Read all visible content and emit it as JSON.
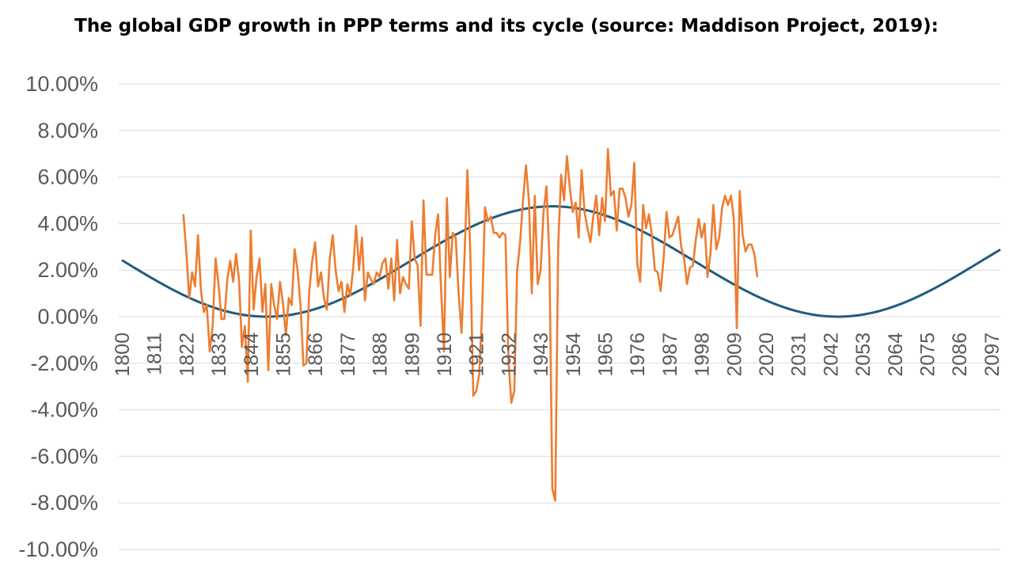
{
  "chart_data": {
    "type": "line",
    "title": "The global GDP growth in PPP terms and its cycle (source: Maddison Project, 2019):",
    "xlabel": "",
    "ylabel": "",
    "xlim": [
      1800,
      2100
    ],
    "ylim": [
      -0.1,
      0.1
    ],
    "y_tick_labels": [
      "10.00%",
      "8.00%",
      "6.00%",
      "4.00%",
      "2.00%",
      "0.00%",
      "-2.00%",
      "-4.00%",
      "-6.00%",
      "-8.00%",
      "-10.00%"
    ],
    "y_ticks": [
      0.1,
      0.08,
      0.06,
      0.04,
      0.02,
      0.0,
      -0.02,
      -0.04,
      -0.06,
      -0.08,
      -0.1
    ],
    "x_tick_labels": [
      "1800",
      "1811",
      "1822",
      "1833",
      "1844",
      "1855",
      "1866",
      "1877",
      "1888",
      "1899",
      "1910",
      "1921",
      "1932",
      "1943",
      "1954",
      "1965",
      "1976",
      "1987",
      "1998",
      "2009",
      "2020",
      "2031",
      "2042",
      "2053",
      "2064",
      "2075",
      "2086",
      "2097"
    ],
    "x_ticks": [
      1800,
      1811,
      1822,
      1833,
      1844,
      1855,
      1866,
      1877,
      1888,
      1899,
      1910,
      1921,
      1932,
      1943,
      1954,
      1965,
      1976,
      1987,
      1998,
      2009,
      2020,
      2031,
      2042,
      2053,
      2064,
      2075,
      2086,
      2097
    ],
    "grid": true,
    "legend": "none",
    "series": [
      {
        "color": "#ED7D31",
        "points": [
          [
            1821,
            0.044
          ],
          [
            1822,
            0.028
          ],
          [
            1823,
            0.008
          ],
          [
            1824,
            0.019
          ],
          [
            1825,
            0.013
          ],
          [
            1826,
            0.035
          ],
          [
            1827,
            0.011
          ],
          [
            1828,
            0.002
          ],
          [
            1829,
            0.005
          ],
          [
            1830,
            -0.015
          ],
          [
            1831,
            -0.004
          ],
          [
            1832,
            0.025
          ],
          [
            1833,
            0.014
          ],
          [
            1834,
            -0.001
          ],
          [
            1835,
            -0.001
          ],
          [
            1836,
            0.016
          ],
          [
            1837,
            0.024
          ],
          [
            1838,
            0.015
          ],
          [
            1839,
            0.027
          ],
          [
            1840,
            0.016
          ],
          [
            1841,
            -0.013
          ],
          [
            1842,
            -0.004
          ],
          [
            1843,
            -0.028
          ],
          [
            1844,
            0.037
          ],
          [
            1845,
            0.003
          ],
          [
            1846,
            0.017
          ],
          [
            1847,
            0.025
          ],
          [
            1848,
            0.002
          ],
          [
            1849,
            0.014
          ],
          [
            1850,
            -0.023
          ],
          [
            1851,
            0.014
          ],
          [
            1852,
            0.005
          ],
          [
            1853,
            -0.001
          ],
          [
            1854,
            0.015
          ],
          [
            1855,
            0.006
          ],
          [
            1856,
            -0.008
          ],
          [
            1857,
            0.008
          ],
          [
            1858,
            0.005
          ],
          [
            1859,
            0.029
          ],
          [
            1860,
            0.02
          ],
          [
            1861,
            0.005
          ],
          [
            1862,
            -0.021
          ],
          [
            1863,
            -0.02
          ],
          [
            1864,
            0.011
          ],
          [
            1865,
            0.024
          ],
          [
            1866,
            0.032
          ],
          [
            1867,
            0.013
          ],
          [
            1868,
            0.019
          ],
          [
            1869,
            0.008
          ],
          [
            1870,
            0.003
          ],
          [
            1871,
            0.025
          ],
          [
            1872,
            0.035
          ],
          [
            1873,
            0.02
          ],
          [
            1874,
            0.011
          ],
          [
            1875,
            0.015
          ],
          [
            1876,
            0.002
          ],
          [
            1877,
            0.014
          ],
          [
            1878,
            0.009
          ],
          [
            1879,
            0.021
          ],
          [
            1880,
            0.039
          ],
          [
            1881,
            0.02
          ],
          [
            1882,
            0.034
          ],
          [
            1883,
            0.007
          ],
          [
            1884,
            0.019
          ],
          [
            1885,
            0.016
          ],
          [
            1886,
            0.014
          ],
          [
            1887,
            0.019
          ],
          [
            1888,
            0.017
          ],
          [
            1889,
            0.023
          ],
          [
            1890,
            0.025
          ],
          [
            1891,
            0.012
          ],
          [
            1892,
            0.025
          ],
          [
            1893,
            0.007
          ],
          [
            1894,
            0.033
          ],
          [
            1895,
            0.01
          ],
          [
            1896,
            0.017
          ],
          [
            1897,
            0.014
          ],
          [
            1898,
            0.012
          ],
          [
            1899,
            0.041
          ],
          [
            1900,
            0.025
          ],
          [
            1901,
            0.022
          ],
          [
            1902,
            -0.004
          ],
          [
            1903,
            0.05
          ],
          [
            1904,
            0.018
          ],
          [
            1905,
            0.018
          ],
          [
            1906,
            0.018
          ],
          [
            1907,
            0.035
          ],
          [
            1908,
            0.044
          ],
          [
            1909,
            0.012
          ],
          [
            1910,
            -0.015
          ],
          [
            1911,
            0.051
          ],
          [
            1912,
            0.017
          ],
          [
            1913,
            0.036
          ],
          [
            1914,
            0.034
          ],
          [
            1915,
            0.01
          ],
          [
            1916,
            -0.007
          ],
          [
            1917,
            0.025
          ],
          [
            1918,
            0.063
          ],
          [
            1919,
            0.027
          ],
          [
            1920,
            -0.034
          ],
          [
            1921,
            -0.032
          ],
          [
            1922,
            -0.025
          ],
          [
            1923,
            0.001
          ],
          [
            1924,
            0.047
          ],
          [
            1925,
            0.041
          ],
          [
            1926,
            0.043
          ],
          [
            1927,
            0.036
          ],
          [
            1928,
            0.036
          ],
          [
            1929,
            0.034
          ],
          [
            1930,
            0.036
          ],
          [
            1931,
            0.035
          ],
          [
            1932,
            -0.018
          ],
          [
            1933,
            -0.037
          ],
          [
            1934,
            -0.032
          ],
          [
            1935,
            0.02
          ],
          [
            1936,
            0.032
          ],
          [
            1937,
            0.05
          ],
          [
            1938,
            0.065
          ],
          [
            1939,
            0.05
          ],
          [
            1940,
            0.01
          ],
          [
            1941,
            0.052
          ],
          [
            1942,
            0.014
          ],
          [
            1943,
            0.02
          ],
          [
            1944,
            0.045
          ],
          [
            1945,
            0.056
          ],
          [
            1946,
            0.025
          ],
          [
            1947,
            -0.074
          ],
          [
            1948,
            -0.079
          ],
          [
            1949,
            0.03
          ],
          [
            1950,
            0.061
          ],
          [
            1951,
            0.05
          ],
          [
            1952,
            0.069
          ],
          [
            1953,
            0.055
          ],
          [
            1954,
            0.045
          ],
          [
            1955,
            0.049
          ],
          [
            1956,
            0.034
          ],
          [
            1957,
            0.063
          ],
          [
            1958,
            0.045
          ],
          [
            1959,
            0.038
          ],
          [
            1960,
            0.032
          ],
          [
            1961,
            0.043
          ],
          [
            1962,
            0.052
          ],
          [
            1963,
            0.035
          ],
          [
            1964,
            0.051
          ],
          [
            1965,
            0.041
          ],
          [
            1966,
            0.072
          ],
          [
            1967,
            0.052
          ],
          [
            1968,
            0.054
          ],
          [
            1969,
            0.037
          ],
          [
            1970,
            0.055
          ],
          [
            1971,
            0.055
          ],
          [
            1972,
            0.051
          ],
          [
            1973,
            0.043
          ],
          [
            1974,
            0.048
          ],
          [
            1975,
            0.066
          ],
          [
            1976,
            0.023
          ],
          [
            1977,
            0.015
          ],
          [
            1978,
            0.048
          ],
          [
            1979,
            0.038
          ],
          [
            1980,
            0.044
          ],
          [
            1981,
            0.035
          ],
          [
            1982,
            0.02
          ],
          [
            1983,
            0.019
          ],
          [
            1984,
            0.011
          ],
          [
            1985,
            0.025
          ],
          [
            1986,
            0.045
          ],
          [
            1987,
            0.034
          ],
          [
            1988,
            0.035
          ],
          [
            1989,
            0.039
          ],
          [
            1990,
            0.043
          ],
          [
            1991,
            0.03
          ],
          [
            1992,
            0.025
          ],
          [
            1993,
            0.014
          ],
          [
            1994,
            0.021
          ],
          [
            1995,
            0.022
          ],
          [
            1996,
            0.033
          ],
          [
            1997,
            0.042
          ],
          [
            1998,
            0.034
          ],
          [
            1999,
            0.04
          ],
          [
            2000,
            0.017
          ],
          [
            2001,
            0.027
          ],
          [
            2002,
            0.048
          ],
          [
            2003,
            0.029
          ],
          [
            2004,
            0.034
          ],
          [
            2005,
            0.047
          ],
          [
            2006,
            0.052
          ],
          [
            2007,
            0.048
          ],
          [
            2008,
            0.052
          ],
          [
            2009,
            0.042
          ],
          [
            2010,
            -0.005
          ],
          [
            2011,
            0.054
          ],
          [
            2012,
            0.035
          ],
          [
            2013,
            0.028
          ],
          [
            2014,
            0.031
          ],
          [
            2015,
            0.031
          ],
          [
            2016,
            0.027
          ],
          [
            2017,
            0.017
          ]
        ]
      },
      {
        "color": "#1F5C7D",
        "cycle": {
          "mean": 0.0237,
          "amplitude": 0.0237,
          "period": 195,
          "peak_year": 1947
        },
        "x_range": [
          1800,
          2100
        ]
      }
    ]
  }
}
